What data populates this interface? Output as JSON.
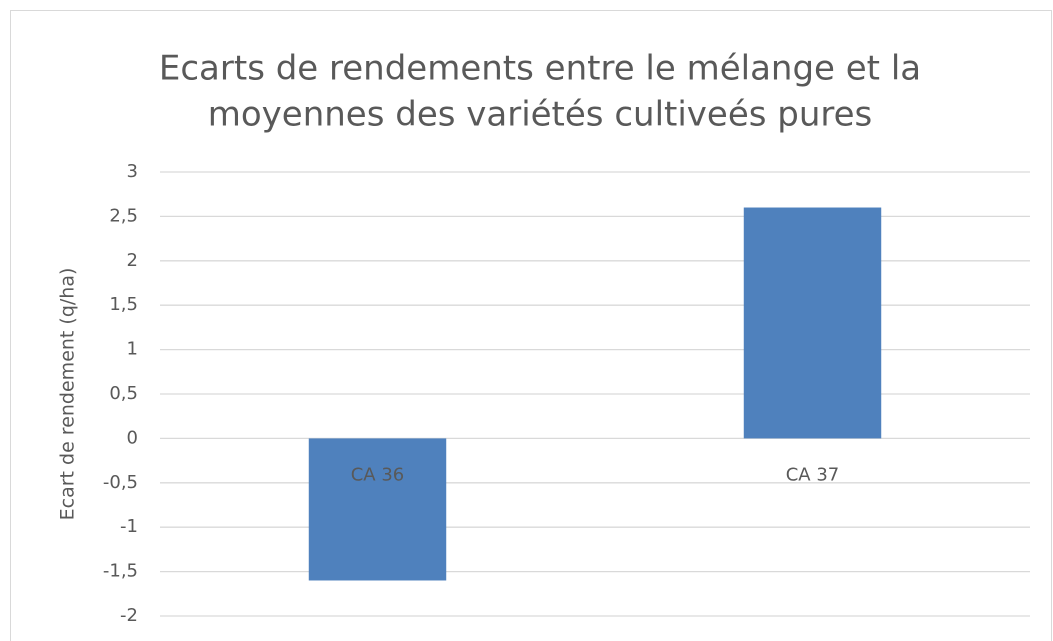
{
  "chart_data": {
    "type": "bar",
    "title": [
      "Ecarts de rendements entre le mélange et la",
      "moyennes des variétés cultiveés pures"
    ],
    "y_label": "Ecart de rendement (q/ha)",
    "categories": [
      "CA 36",
      "CA 37"
    ],
    "values": [
      -1.6,
      2.6
    ],
    "color": "#4f81bd",
    "ylim": [
      -2,
      3
    ],
    "yticks": [
      3,
      {
        "value": 2.5,
        "label": "2,5"
      },
      2,
      {
        "value": 1.5,
        "label": "1,5"
      },
      1,
      {
        "value": 0.5,
        "label": "0,5"
      },
      0,
      {
        "value": -0.5,
        "label": "-0,5"
      },
      -1,
      {
        "value": -1.5,
        "label": "-1,5"
      },
      -2
    ],
    "grid": true
  }
}
